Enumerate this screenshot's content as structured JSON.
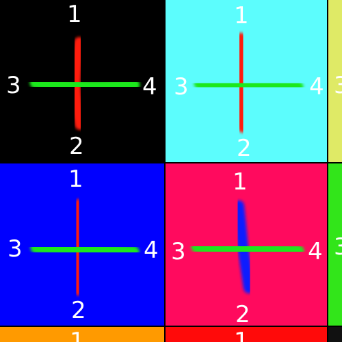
{
  "tiles": [
    {
      "id": "top-left",
      "bg": "#000000",
      "vertical_color": "#ff1a0a",
      "horizontal_color": "#1ee81e",
      "labels": {
        "top": "1",
        "bottom": "2",
        "left": "3",
        "right": "4"
      }
    },
    {
      "id": "top-center",
      "bg": "#5cfdfd",
      "vertical_color": "#ff1a0a",
      "horizontal_color": "#1ee81e",
      "labels": {
        "top": "1",
        "bottom": "2",
        "left": "3",
        "right": "4"
      }
    },
    {
      "id": "top-right",
      "bg": "#dfea66",
      "labels": {
        "left": "3"
      }
    },
    {
      "id": "middle-left",
      "bg": "#0000ff",
      "vertical_color": "#ff1a0a",
      "horizontal_color": "#1ee81e",
      "labels": {
        "top": "1",
        "bottom": "2",
        "left": "3",
        "right": "4"
      }
    },
    {
      "id": "middle-center",
      "bg": "#ff0a5e",
      "vertical_color": "#0f1aff",
      "horizontal_color": "#1ee81e",
      "labels": {
        "top": "1",
        "bottom": "2",
        "left": "3",
        "right": "4"
      }
    },
    {
      "id": "middle-right",
      "bg": "#32e51a",
      "labels": {
        "left": "3"
      }
    },
    {
      "id": "bottom-left",
      "bg": "#ff9a00",
      "labels": {
        "top": "1"
      }
    },
    {
      "id": "bottom-center",
      "bg": "#ff0a0a",
      "labels": {
        "top": "1"
      }
    },
    {
      "id": "bottom-right",
      "bg": "#111111",
      "labels": {}
    }
  ]
}
